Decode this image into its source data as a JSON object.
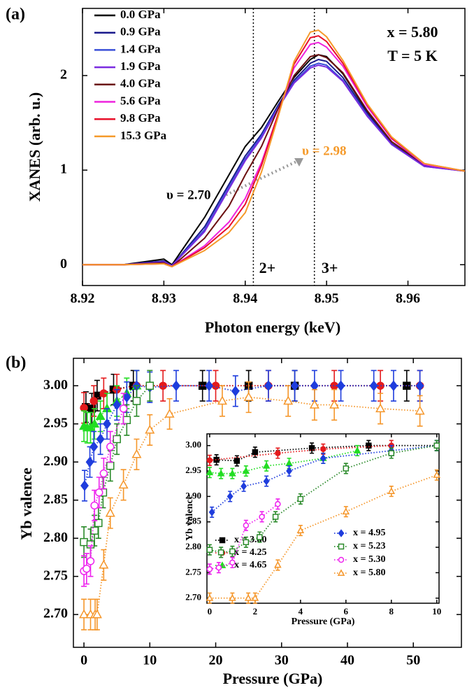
{
  "chart_data": [
    {
      "type": "line",
      "panel_label": "(a)",
      "x_label": "Photon energy (keV)",
      "y_label": "XANES (arb. u.)",
      "xlim": [
        8.92,
        8.967
      ],
      "ylim": [
        -0.22,
        2.71
      ],
      "xticks": [
        8.92,
        8.93,
        8.94,
        8.95,
        8.96
      ],
      "yticks": [
        0,
        1,
        2
      ],
      "x": [
        8.92,
        8.925,
        8.93,
        8.931,
        8.935,
        8.938,
        8.94,
        8.942,
        8.944,
        8.946,
        8.948,
        8.949,
        8.95,
        8.952,
        8.955,
        8.958,
        8.962,
        8.967
      ],
      "series": [
        {
          "name": "0.0 GPa",
          "color": "#000000",
          "values": [
            0,
            0,
            0.06,
            0.0,
            0.5,
            0.95,
            1.25,
            1.45,
            1.72,
            1.98,
            2.17,
            2.22,
            2.2,
            2.02,
            1.62,
            1.3,
            1.06,
            0.99
          ]
        },
        {
          "name": "0.9 GPa",
          "color": "#1a1a8c",
          "values": [
            0,
            0,
            0.04,
            -0.01,
            0.4,
            0.85,
            1.15,
            1.38,
            1.68,
            1.95,
            2.13,
            2.17,
            2.15,
            1.98,
            1.6,
            1.28,
            1.05,
            0.99
          ]
        },
        {
          "name": "1.4 GPa",
          "color": "#3a4fd8",
          "values": [
            0,
            0,
            0.03,
            -0.01,
            0.37,
            0.82,
            1.12,
            1.36,
            1.66,
            1.93,
            2.1,
            2.13,
            2.11,
            1.95,
            1.58,
            1.27,
            1.04,
            0.99
          ]
        },
        {
          "name": "1.9 GPa",
          "color": "#7a2be0",
          "values": [
            0,
            0,
            0.03,
            -0.01,
            0.35,
            0.8,
            1.1,
            1.34,
            1.65,
            1.92,
            2.08,
            2.11,
            2.09,
            1.94,
            1.57,
            1.27,
            1.04,
            0.99
          ]
        },
        {
          "name": "4.0 GPa",
          "color": "#6b1010",
          "values": [
            0,
            0,
            0.02,
            -0.02,
            0.28,
            0.62,
            0.95,
            1.25,
            1.64,
            2.0,
            2.2,
            2.22,
            2.19,
            2.03,
            1.63,
            1.3,
            1.06,
            0.99
          ]
        },
        {
          "name": "5.6 GPa",
          "color": "#ee22dd",
          "values": [
            0,
            0,
            0.01,
            -0.02,
            0.2,
            0.45,
            0.7,
            1.08,
            1.58,
            2.08,
            2.33,
            2.35,
            2.3,
            2.1,
            1.67,
            1.33,
            1.06,
            0.99
          ]
        },
        {
          "name": "9.8 GPa",
          "color": "#e8102a",
          "values": [
            0,
            0,
            0.01,
            -0.02,
            0.18,
            0.4,
            0.64,
            1.05,
            1.58,
            2.12,
            2.4,
            2.42,
            2.36,
            2.13,
            1.69,
            1.34,
            1.07,
            0.99
          ]
        },
        {
          "name": "15.3 GPa",
          "color": "#f59a2a",
          "values": [
            0,
            0,
            0.01,
            -0.02,
            0.15,
            0.34,
            0.55,
            0.98,
            1.55,
            2.15,
            2.46,
            2.48,
            2.41,
            2.16,
            1.7,
            1.35,
            1.07,
            0.99
          ]
        }
      ],
      "reference_lines": [
        {
          "x": 8.941,
          "label": "2+"
        },
        {
          "x": 8.9485,
          "label": "3+"
        }
      ],
      "annotations": [
        {
          "text": "x = 5.80",
          "color": "#000000"
        },
        {
          "text": "T = 5 K",
          "color": "#000000"
        },
        {
          "text": "υ = 2.70",
          "color": "#000000"
        },
        {
          "text": "υ = 2.98",
          "color": "#f59a2a"
        }
      ]
    },
    {
      "type": "scatter",
      "panel_label": "(b)",
      "x_label": "Pressure (GPa)",
      "y_label": "Yb valence",
      "xlim": [
        -1.6,
        57.3
      ],
      "ylim": [
        2.657,
        3.036
      ],
      "xticks": [
        0,
        10,
        20,
        30,
        40,
        50
      ],
      "yticks": [
        {
          "value": 3.0,
          "label": "3.00"
        },
        2.95,
        {
          "value": 2.9,
          "label": "2.90"
        },
        2.85,
        {
          "value": 2.8,
          "label": "2.80"
        },
        2.75,
        {
          "value": 2.7,
          "label": "2.70"
        }
      ],
      "line_style": "dotted",
      "series": [
        {
          "color": "#000000",
          "marker": "square",
          "filled": true,
          "x": [
            0.3,
            1.2,
            2,
            4.5,
            7.5,
            18,
            25,
            32,
            49
          ],
          "values": [
            2.972,
            2.97,
            2.987,
            2.995,
            3.0,
            3.0,
            3.0,
            3.0,
            3.0
          ],
          "errors": [
            0.02,
            0.02,
            0.02,
            0.02,
            0.02,
            0.02,
            0.02,
            0.02,
            0.02
          ]
        },
        {
          "color": "#e41a1c",
          "marker": "circle",
          "filled": true,
          "x": [
            0,
            1.5,
            3,
            5,
            8,
            12,
            20,
            28,
            38,
            45,
            51
          ],
          "values": [
            2.971,
            2.98,
            2.99,
            2.995,
            3.0,
            3.0,
            3.0,
            3.0,
            3.0,
            3.0,
            3.0
          ],
          "errors": [
            0.02,
            0.02,
            0.02,
            0.02,
            0.02,
            0.02,
            0.02,
            0.02,
            0.02,
            0.02,
            0.02
          ]
        },
        {
          "color": "#22dd22",
          "marker": "triangle",
          "filled": true,
          "x": [
            0,
            0.5,
            1,
            1.6,
            2.5,
            3.5,
            5,
            6.5,
            8
          ],
          "values": [
            2.947,
            2.945,
            2.945,
            2.95,
            2.96,
            2.97,
            2.98,
            2.99,
            3.0
          ],
          "errors": [
            0.02,
            0.02,
            0.02,
            0.02,
            0.02,
            0.02,
            0.02,
            0.02,
            0.02
          ]
        },
        {
          "color": "#1f3ddd",
          "marker": "diamond",
          "filled": true,
          "x": [
            0.1,
            0.9,
            1.5,
            2.5,
            3.5,
            5,
            6.5,
            8,
            10,
            14,
            19,
            23,
            28,
            32,
            35,
            39,
            44,
            47,
            51
          ],
          "values": [
            2.869,
            2.9,
            2.92,
            2.93,
            2.95,
            2.975,
            2.985,
            3.0,
            2.998,
            3.0,
            3.0,
            2.993,
            3.0,
            3.0,
            3.0,
            3.0,
            3.0,
            3.0,
            3.0
          ],
          "errors": [
            0.02,
            0.02,
            0.02,
            0.02,
            0.02,
            0.02,
            0.02,
            0.02,
            0.02,
            0.02,
            0.02,
            0.02,
            0.02,
            0.02,
            0.02,
            0.02,
            0.02,
            0.02,
            0.02
          ]
        },
        {
          "color": "#2a8a2a",
          "marker": "square",
          "filled": false,
          "x": [
            0,
            1,
            1.6,
            2.2,
            2.9,
            4,
            5,
            6.5,
            8,
            10
          ],
          "values": [
            2.795,
            2.792,
            2.81,
            2.82,
            2.86,
            2.895,
            2.93,
            2.955,
            2.98,
            3.0
          ],
          "errors": [
            0.02,
            0.02,
            0.02,
            0.02,
            0.02,
            0.02,
            0.02,
            0.02,
            0.02,
            0.02
          ]
        },
        {
          "color": "#ee22ee",
          "marker": "circle",
          "filled": false,
          "x": [
            0,
            0.4,
            1,
            1.6,
            2.3,
            3,
            4,
            6
          ],
          "values": [
            2.757,
            2.76,
            2.77,
            2.843,
            2.86,
            2.885,
            2.92,
            2.97
          ],
          "errors": [
            0.02,
            0.02,
            0.02,
            0.02,
            0.02,
            0.02,
            0.02,
            0.02
          ]
        },
        {
          "color": "#f5962a",
          "marker": "triangle",
          "filled": false,
          "x": [
            0,
            1,
            1.7,
            2,
            3,
            4,
            6,
            8,
            10,
            13,
            21,
            25,
            31,
            35,
            38,
            45,
            51
          ],
          "values": [
            2.7,
            2.7,
            2.7,
            2.7,
            2.765,
            2.833,
            2.87,
            2.91,
            2.942,
            2.963,
            2.98,
            2.985,
            2.98,
            2.975,
            2.975,
            2.97,
            2.967
          ],
          "errors": [
            0.02,
            0.02,
            0.02,
            0.02,
            0.02,
            0.02,
            0.02,
            0.02,
            0.02,
            0.02,
            0.02,
            0.02,
            0.02,
            0.02,
            0.02,
            0.02,
            0.02
          ]
        }
      ]
    },
    {
      "type": "scatter",
      "x_label": "Pressure (GPa)",
      "y_label": "Yb valence",
      "xlim": [
        -0.12,
        10.1
      ],
      "ylim": [
        2.69,
        3.023
      ],
      "xticks": [
        0,
        2,
        4,
        6,
        8,
        10
      ],
      "yticks": [
        {
          "value": 3.0,
          "label": "3.00"
        },
        2.95,
        {
          "value": 2.9,
          "label": "2.90"
        },
        2.85,
        {
          "value": 2.8,
          "label": "2.80"
        },
        2.75,
        {
          "value": 2.7,
          "label": "2.70"
        }
      ],
      "line_style": "dotted",
      "legend": true,
      "series": [
        {
          "name": "x = 3.80",
          "color": "#000000",
          "marker": "square",
          "filled": true,
          "x": [
            0.3,
            1.2,
            2,
            4.5,
            7,
            10
          ],
          "values": [
            2.972,
            2.97,
            2.987,
            2.995,
            3.0,
            3.0
          ],
          "errors": [
            0.01,
            0.01,
            0.01,
            0.01,
            0.01,
            0.01
          ]
        },
        {
          "name": "x = 4.25",
          "color": "#e41a1c",
          "marker": "circle",
          "filled": true,
          "x": [
            0,
            3,
            5,
            8
          ],
          "values": [
            2.971,
            2.985,
            2.993,
            3.0
          ],
          "errors": [
            0.01,
            0.01,
            0.01,
            0.01
          ]
        },
        {
          "name": "x = 4.65",
          "color": "#22dd22",
          "marker": "triangle",
          "filled": true,
          "x": [
            0,
            0.5,
            1,
            1.6,
            2.5,
            3.5,
            5,
            6.5
          ],
          "values": [
            2.947,
            2.945,
            2.945,
            2.95,
            2.96,
            2.965,
            2.975,
            2.99
          ],
          "errors": [
            0.01,
            0.01,
            0.01,
            0.01,
            0.01,
            0.01,
            0.01,
            0.01
          ]
        },
        {
          "name": "x = 4.95",
          "color": "#1f3ddd",
          "marker": "diamond",
          "filled": true,
          "x": [
            0.1,
            0.9,
            1.5,
            2.5,
            3.5,
            5,
            8,
            10
          ],
          "values": [
            2.869,
            2.9,
            2.92,
            2.93,
            2.95,
            2.975,
            2.99,
            3.0
          ],
          "errors": [
            0.01,
            0.01,
            0.01,
            0.01,
            0.01,
            0.01,
            0.01,
            0.01
          ]
        },
        {
          "name": "x = 5.23",
          "color": "#2a8a2a",
          "marker": "square",
          "filled": false,
          "x": [
            0,
            0.5,
            1,
            1.6,
            2.2,
            2.9,
            4,
            6,
            8,
            10
          ],
          "values": [
            2.795,
            2.79,
            2.792,
            2.81,
            2.82,
            2.86,
            2.895,
            2.955,
            2.985,
            3.0
          ],
          "errors": [
            0.01,
            0.01,
            0.01,
            0.01,
            0.01,
            0.01,
            0.01,
            0.01,
            0.01,
            0.01
          ]
        },
        {
          "name": "x = 5.30",
          "color": "#ee22ee",
          "marker": "circle",
          "filled": false,
          "x": [
            0,
            0.4,
            1,
            1.6,
            2.3,
            3
          ],
          "values": [
            2.757,
            2.76,
            2.77,
            2.843,
            2.86,
            2.885
          ],
          "errors": [
            0.01,
            0.01,
            0.01,
            0.01,
            0.01,
            0.01
          ]
        },
        {
          "name": "x = 5.80",
          "color": "#f5962a",
          "marker": "triangle",
          "filled": false,
          "x": [
            0,
            1,
            1.7,
            2,
            3,
            4,
            6,
            8,
            10
          ],
          "values": [
            2.7,
            2.7,
            2.7,
            2.7,
            2.765,
            2.833,
            2.87,
            2.91,
            2.942
          ],
          "errors": [
            0.01,
            0.01,
            0.01,
            0.01,
            0.01,
            0.01,
            0.01,
            0.01,
            0.01
          ]
        }
      ]
    }
  ]
}
